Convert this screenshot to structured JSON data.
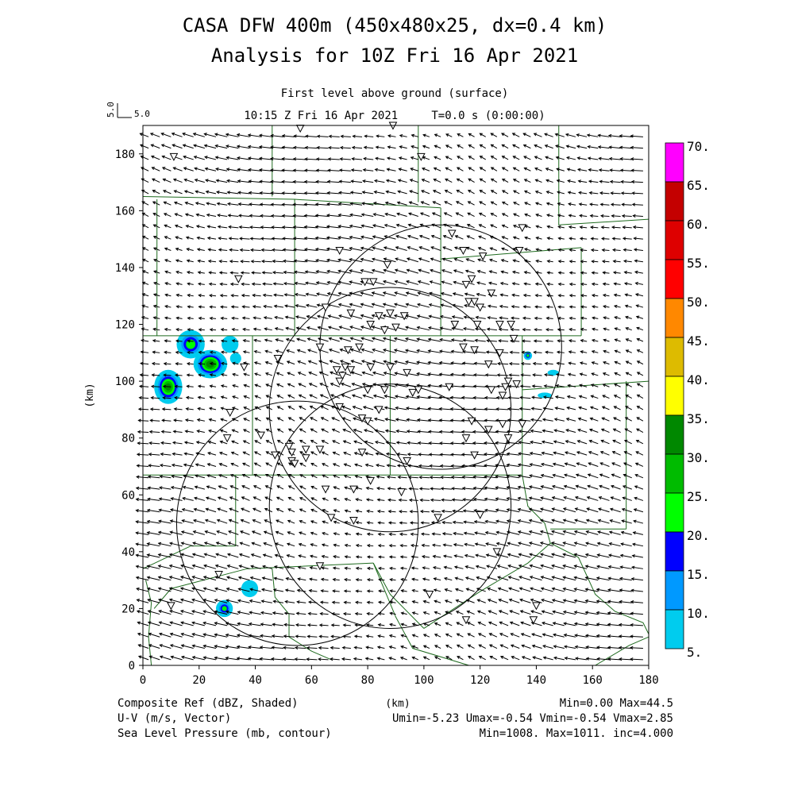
{
  "chart_data": {
    "type": "heatmap",
    "title_line1": "CASA DFW 400m (450x480x25, dx=0.4 km)",
    "title_line2": "Analysis for 10Z Fri 16 Apr 2021",
    "subtitle_line1": "First level above ground (surface)",
    "subtitle_line2": "10:15 Z Fri 16 Apr 2021     T=0.0 s (0:00:00)",
    "vector_ref": {
      "rotated_label": "5.0",
      "label": "5.0"
    },
    "xlabel": "(km)",
    "ylabel": "(km)",
    "xlim": [
      0,
      180
    ],
    "ylim": [
      0,
      190
    ],
    "x_ticks": [
      "0",
      "20",
      "40",
      "60",
      "80",
      "100",
      "120",
      "140",
      "160",
      "180"
    ],
    "y_ticks": [
      "0",
      "20",
      "40",
      "60",
      "80",
      "100",
      "120",
      "140",
      "160",
      "180"
    ],
    "colorbar": {
      "labels": [
        "70.",
        "65.",
        "60.",
        "55.",
        "50.",
        "45.",
        "40.",
        "35.",
        "30.",
        "25.",
        "20.",
        "15.",
        "10.",
        "5."
      ],
      "colors": [
        "#ff00ff",
        "#c40000",
        "#de0000",
        "#ff0000",
        "#ff8800",
        "#ddbb00",
        "#ffff00",
        "#008800",
        "#00bb00",
        "#00ff00",
        "#0000ff",
        "#0099ff",
        "#00ccee"
      ]
    },
    "footer_left": [
      "Composite Ref (dBZ, Shaded)",
      "U-V (m/s, Vector)",
      "Sea Level Pressure (mb, contour)"
    ],
    "footer_center": "(km)",
    "footer_right": [
      "Min=0.00 Max=44.5",
      "Umin=-5.23 Umax=-0.54 Vmin=-0.54 Vmax=2.85",
      "Min=1008. Max=1011. inc=4.000"
    ],
    "radar_rings": [
      {
        "cx": 106,
        "cy": 112,
        "r": 43
      },
      {
        "cx": 88,
        "cy": 90,
        "r": 43
      },
      {
        "cx": 55,
        "cy": 50,
        "r": 43
      },
      {
        "cx": 88,
        "cy": 56,
        "r": 43
      }
    ],
    "echoes": [
      {
        "x": 17,
        "y": 113,
        "rx": 5,
        "ry": 5,
        "peak": 30
      },
      {
        "x": 24,
        "y": 106,
        "rx": 6,
        "ry": 5,
        "peak": 40
      },
      {
        "x": 31,
        "y": 113,
        "rx": 3,
        "ry": 3,
        "peak": 15
      },
      {
        "x": 33,
        "y": 108,
        "rx": 2,
        "ry": 2,
        "peak": 15
      },
      {
        "x": 9,
        "y": 98,
        "rx": 5,
        "ry": 6,
        "peak": 38
      },
      {
        "x": 137,
        "y": 109,
        "rx": 1.5,
        "ry": 1.5,
        "peak": 30
      },
      {
        "x": 146,
        "y": 103,
        "rx": 2,
        "ry": 1,
        "peak": 15
      },
      {
        "x": 143,
        "y": 95,
        "rx": 2.5,
        "ry": 1,
        "peak": 15
      },
      {
        "x": 38,
        "y": 27,
        "rx": 3,
        "ry": 3,
        "peak": 12
      },
      {
        "x": 29,
        "y": 20,
        "rx": 3,
        "ry": 3,
        "peak": 28
      }
    ],
    "stations": [
      [
        11,
        179
      ],
      [
        56,
        189
      ],
      [
        89,
        190
      ],
      [
        99,
        179
      ],
      [
        110,
        152
      ],
      [
        114,
        146
      ],
      [
        121,
        144
      ],
      [
        135,
        154
      ],
      [
        134,
        146
      ],
      [
        87,
        141
      ],
      [
        70,
        146
      ],
      [
        34,
        136
      ],
      [
        79,
        135
      ],
      [
        82,
        135
      ],
      [
        117,
        136
      ],
      [
        115,
        134
      ],
      [
        116,
        128
      ],
      [
        118,
        128
      ],
      [
        124,
        131
      ],
      [
        120,
        126
      ],
      [
        111,
        120
      ],
      [
        119,
        120
      ],
      [
        127,
        120
      ],
      [
        131,
        120
      ],
      [
        132,
        115
      ],
      [
        65,
        126
      ],
      [
        74,
        124
      ],
      [
        84,
        123
      ],
      [
        88,
        124
      ],
      [
        93,
        123
      ],
      [
        81,
        120
      ],
      [
        86,
        118
      ],
      [
        90,
        119
      ],
      [
        73,
        111
      ],
      [
        63,
        112
      ],
      [
        77,
        112
      ],
      [
        114,
        112
      ],
      [
        118,
        111
      ],
      [
        127,
        110
      ],
      [
        123,
        106
      ],
      [
        48,
        108
      ],
      [
        69,
        104
      ],
      [
        71,
        102
      ],
      [
        72,
        105
      ],
      [
        74,
        104
      ],
      [
        81,
        105
      ],
      [
        88,
        105
      ],
      [
        70,
        100
      ],
      [
        130,
        100
      ],
      [
        36,
        105
      ],
      [
        94,
        103
      ],
      [
        98,
        97
      ],
      [
        109,
        98
      ],
      [
        124,
        97
      ],
      [
        129,
        98
      ],
      [
        133,
        99
      ],
      [
        128,
        95
      ],
      [
        80,
        97
      ],
      [
        86,
        97
      ],
      [
        96,
        96
      ],
      [
        70,
        91
      ],
      [
        31,
        89
      ],
      [
        78,
        87
      ],
      [
        84,
        90
      ],
      [
        80,
        86
      ],
      [
        42,
        81
      ],
      [
        30,
        80
      ],
      [
        52,
        77
      ],
      [
        53,
        75
      ],
      [
        58,
        76
      ],
      [
        63,
        76
      ],
      [
        47,
        74
      ],
      [
        53,
        72
      ],
      [
        54,
        71
      ],
      [
        58,
        73
      ],
      [
        78,
        75
      ],
      [
        94,
        72
      ],
      [
        117,
        86
      ],
      [
        115,
        80
      ],
      [
        123,
        83
      ],
      [
        118,
        74
      ],
      [
        81,
        65
      ],
      [
        75,
        62
      ],
      [
        65,
        62
      ],
      [
        92,
        61
      ],
      [
        128,
        85
      ],
      [
        135,
        85
      ],
      [
        130,
        80
      ],
      [
        67,
        52
      ],
      [
        75,
        51
      ],
      [
        105,
        52
      ],
      [
        120,
        53
      ],
      [
        126,
        40
      ],
      [
        63,
        35
      ],
      [
        102,
        25
      ],
      [
        27,
        32
      ],
      [
        10,
        21
      ],
      [
        115,
        16
      ],
      [
        140,
        21
      ],
      [
        139,
        16
      ]
    ],
    "county_lines": [
      [
        [
          46,
          190
        ],
        [
          46,
          165
        ]
      ],
      [
        [
          98,
          190
        ],
        [
          98,
          163
        ]
      ],
      [
        [
          148,
          190
        ],
        [
          148,
          155
        ],
        [
          180,
          157
        ]
      ],
      [
        [
          0,
          165
        ],
        [
          54,
          164
        ],
        [
          106,
          161
        ]
      ],
      [
        [
          5,
          164
        ],
        [
          5,
          116
        ]
      ],
      [
        [
          54,
          164
        ],
        [
          54,
          116
        ]
      ],
      [
        [
          106,
          161
        ],
        [
          106,
          116
        ]
      ],
      [
        [
          106,
          143
        ],
        [
          156,
          147
        ]
      ],
      [
        [
          156,
          147
        ],
        [
          156,
          116
        ]
      ],
      [
        [
          0,
          116
        ],
        [
          156,
          116
        ]
      ],
      [
        [
          39,
          116
        ],
        [
          39,
          67
        ]
      ],
      [
        [
          88,
          116
        ],
        [
          88,
          67
        ]
      ],
      [
        [
          135,
          116
        ],
        [
          135,
          67
        ]
      ],
      [
        [
          135,
          97
        ],
        [
          180,
          100
        ]
      ],
      [
        [
          172,
          100
        ],
        [
          172,
          48
        ]
      ],
      [
        [
          0,
          67
        ],
        [
          135,
          67
        ]
      ],
      [
        [
          33,
          67
        ],
        [
          33,
          42
        ]
      ],
      [
        [
          17,
          42
        ],
        [
          33,
          42
        ]
      ],
      [
        [
          0,
          34
        ],
        [
          17,
          42
        ]
      ],
      [
        [
          4,
          20
        ],
        [
          10,
          27
        ],
        [
          37,
          34
        ],
        [
          82,
          36
        ]
      ],
      [
        [
          82,
          36
        ],
        [
          88,
          25
        ],
        [
          100,
          13
        ]
      ],
      [
        [
          82,
          36
        ],
        [
          90,
          17
        ],
        [
          96,
          6
        ],
        [
          116,
          0
        ]
      ],
      [
        [
          135,
          67
        ],
        [
          137,
          56
        ],
        [
          143,
          50
        ],
        [
          145,
          43
        ]
      ],
      [
        [
          145,
          48
        ],
        [
          172,
          48
        ]
      ],
      [
        [
          145,
          43
        ],
        [
          137,
          36
        ],
        [
          120,
          26
        ],
        [
          100,
          13
        ]
      ],
      [
        [
          145,
          43
        ],
        [
          155,
          38
        ],
        [
          161,
          25
        ],
        [
          168,
          19
        ],
        [
          178,
          15
        ],
        [
          180,
          11
        ]
      ],
      [
        [
          46,
          34
        ],
        [
          47,
          24
        ],
        [
          52,
          18
        ],
        [
          52,
          10
        ],
        [
          60,
          5
        ],
        [
          67,
          2
        ]
      ],
      [
        [
          161,
          0
        ],
        [
          173,
          7
        ],
        [
          180,
          10
        ]
      ],
      [
        [
          3,
          0
        ],
        [
          2,
          10
        ],
        [
          3,
          22
        ],
        [
          1,
          30
        ]
      ]
    ]
  }
}
